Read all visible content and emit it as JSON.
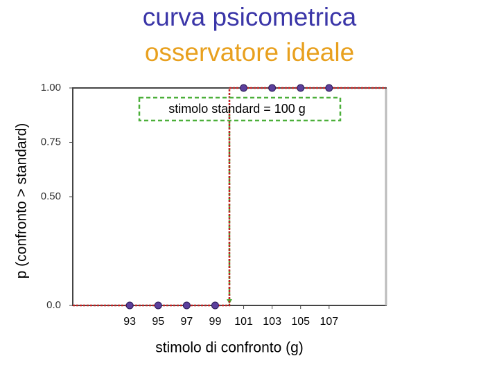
{
  "chart_data": {
    "type": "scatter",
    "title": "curva psicometrica",
    "subtitle": "osservatore ideale",
    "x_label": "stimolo di confronto (g)",
    "y_label": "p (confronto > standard)",
    "annotation": "stimolo standard = 100 g",
    "series": [
      {
        "color": "#5b3f9c",
        "x": [
          93,
          95,
          97,
          99,
          101,
          103,
          105,
          107
        ],
        "values": [
          0,
          0,
          0,
          0,
          1,
          1,
          1,
          1
        ]
      }
    ],
    "step": {
      "color": "#c02020",
      "x": [
        89,
        100,
        100,
        111
      ],
      "y": [
        0,
        0,
        1,
        1
      ]
    },
    "standard_line": {
      "color": "#4caf3a",
      "x": 100
    },
    "xlim": [
      89,
      111
    ],
    "xticks": [
      93,
      95,
      97,
      99,
      101,
      103,
      105,
      107
    ],
    "ylim": [
      0,
      1
    ],
    "yticks": [
      {
        "value": 0,
        "label": "0.0"
      },
      {
        "value": 0.5,
        "label": "0.50"
      },
      0.75,
      {
        "value": 1,
        "label": "1.00"
      }
    ]
  }
}
